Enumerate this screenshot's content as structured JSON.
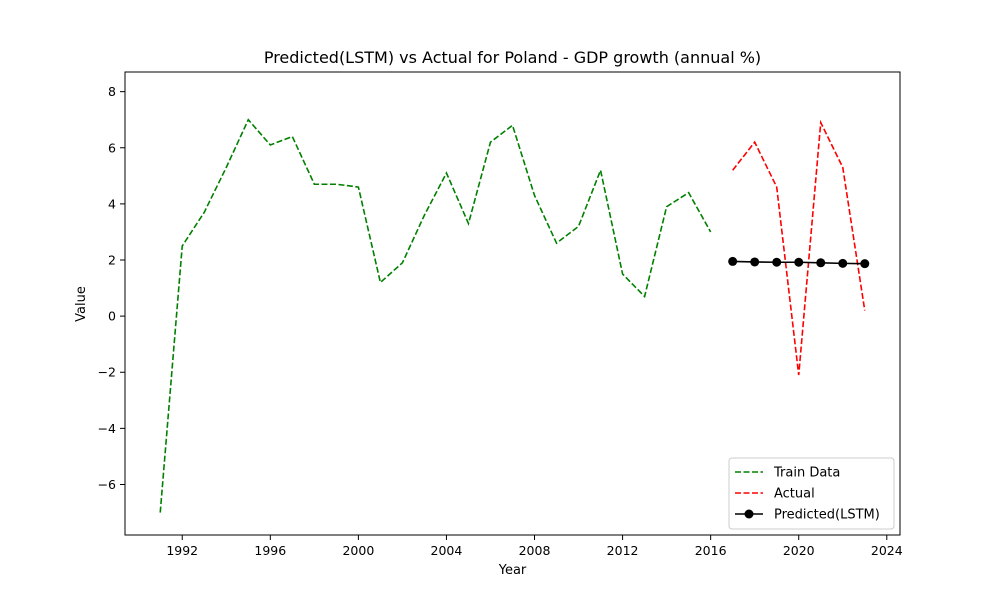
{
  "chart_data": {
    "type": "line",
    "title": "Predicted(LSTM) vs Actual for Poland - GDP growth (annual %)",
    "xlabel": "Year",
    "ylabel": "Value",
    "xlim": [
      1989.4,
      2024.6
    ],
    "ylim": [
      -7.8,
      8.7
    ],
    "xticks": [
      1992,
      1996,
      2000,
      2004,
      2008,
      2012,
      2016,
      2020,
      2024
    ],
    "yticks": [
      -6,
      -4,
      -2,
      0,
      2,
      4,
      6,
      8
    ],
    "grid": false,
    "legend": "lower-right",
    "series": [
      {
        "name": "Train Data",
        "color": "#008000",
        "style": "dashed",
        "x": [
          1991,
          1992,
          1993,
          1994,
          1995,
          1996,
          1997,
          1998,
          1999,
          2000,
          2001,
          2002,
          2003,
          2004,
          2005,
          2006,
          2007,
          2008,
          2009,
          2010,
          2011,
          2012,
          2013,
          2014,
          2015,
          2016
        ],
        "y": [
          -7.0,
          2.5,
          3.7,
          5.3,
          7.0,
          6.1,
          6.4,
          4.7,
          4.7,
          4.6,
          1.2,
          1.9,
          3.6,
          5.1,
          3.3,
          6.2,
          6.8,
          4.3,
          2.6,
          3.2,
          5.2,
          1.5,
          0.7,
          3.9,
          4.4,
          3.0
        ]
      },
      {
        "name": "Actual",
        "color": "#ff0000",
        "style": "dashed",
        "x": [
          2017,
          2018,
          2019,
          2020,
          2021,
          2022,
          2023
        ],
        "y": [
          5.2,
          6.2,
          4.6,
          -2.1,
          6.9,
          5.3,
          0.2
        ]
      },
      {
        "name": "Predicted(LSTM)",
        "color": "#000000",
        "style": "solid-marker",
        "x": [
          2017,
          2018,
          2019,
          2020,
          2021,
          2022,
          2023
        ],
        "y": [
          1.95,
          1.93,
          1.92,
          1.92,
          1.9,
          1.88,
          1.87
        ]
      }
    ]
  }
}
